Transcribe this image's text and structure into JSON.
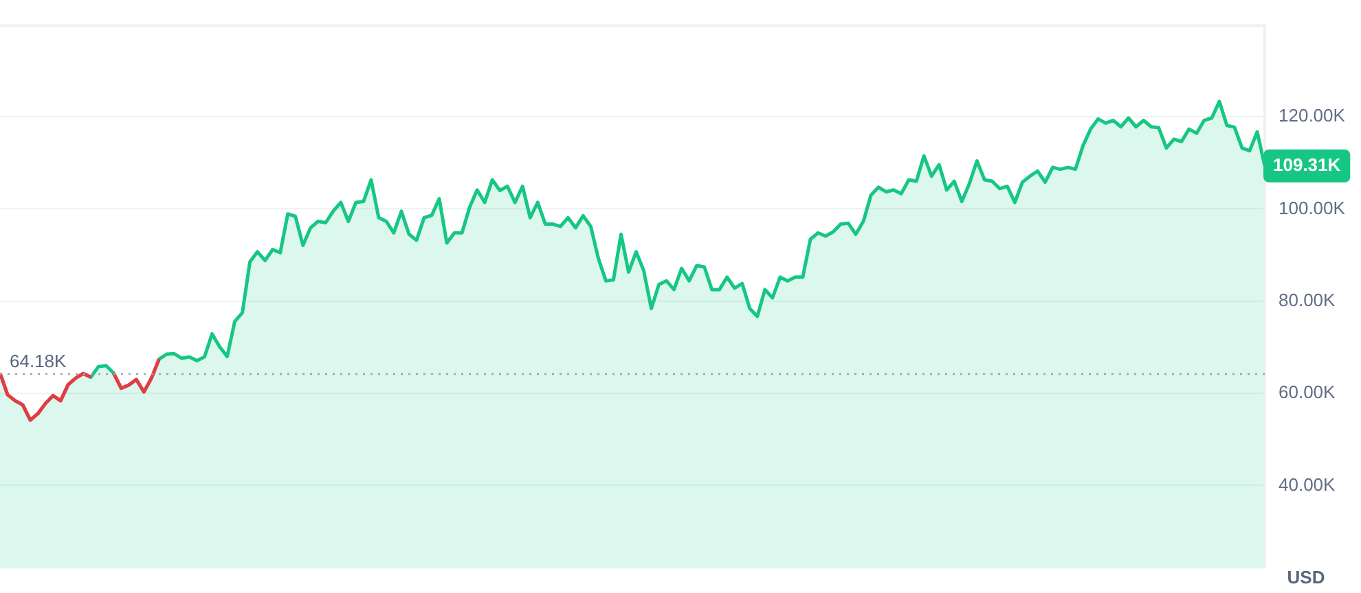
{
  "chart_data": {
    "type": "area",
    "ylabel": "USD",
    "categories": [
      null,
      null,
      null,
      null,
      null,
      null,
      null,
      null,
      null,
      null,
      null,
      null,
      null,
      null,
      null,
      null,
      null,
      null,
      null,
      null,
      null,
      null,
      null,
      null,
      null,
      null,
      null,
      null,
      null,
      null,
      null,
      null,
      null,
      null,
      null,
      null,
      null,
      null,
      null,
      null,
      null,
      null,
      null,
      null,
      null,
      null,
      null,
      null,
      null,
      null,
      null,
      null,
      null,
      null,
      null,
      null,
      null,
      null,
      null,
      null,
      null,
      null,
      null,
      null,
      null,
      null,
      null,
      null,
      null,
      null,
      null,
      null,
      null,
      null,
      null,
      null,
      null,
      null,
      null,
      null,
      null,
      null,
      null,
      null,
      null,
      null,
      null,
      null,
      null,
      null,
      null,
      null,
      null,
      null,
      null,
      null,
      null,
      null,
      null,
      null,
      null,
      null,
      null,
      null,
      null,
      null,
      null,
      null,
      null,
      null,
      null,
      null,
      null,
      null,
      null,
      null,
      null,
      null,
      null,
      null,
      null,
      null,
      null,
      null,
      null,
      null,
      null,
      null,
      null,
      null,
      null,
      null,
      null,
      null,
      null,
      null,
      null,
      null,
      null,
      null,
      null,
      null,
      null,
      null,
      null,
      null,
      null,
      null,
      null,
      null,
      null,
      null,
      null,
      null,
      null,
      null,
      null,
      null,
      null,
      null,
      null,
      null,
      null,
      null,
      null,
      null,
      null,
      null
    ],
    "series": [
      {
        "color": "#16c784",
        "values": [
          64.4,
          59.7,
          58.4,
          57.5,
          54.2,
          55.6,
          57.8,
          59.5,
          58.4,
          61.9,
          63.3,
          64.3,
          63.5,
          65.8,
          66.0,
          64.4,
          61.1,
          61.8,
          63.0,
          60.3,
          63.3,
          67.4,
          68.5,
          68.6,
          67.6,
          67.9,
          67.1,
          67.9,
          72.9,
          70.1,
          68.0,
          75.6,
          77.5,
          88.5,
          90.7,
          88.8,
          91.2,
          90.5,
          98.9,
          98.4,
          92.1,
          95.9,
          97.3,
          97.0,
          99.5,
          101.4,
          97.3,
          101.4,
          101.6,
          106.3,
          98.1,
          97.3,
          94.8,
          99.5,
          94.5,
          93.2,
          98.1,
          98.6,
          102.2,
          92.6,
          94.8,
          94.8,
          100.3,
          104.1,
          101.4,
          106.3,
          104.0,
          104.9,
          101.4,
          104.9,
          98.1,
          101.4,
          96.7,
          96.7,
          96.2,
          98.1,
          95.9,
          98.5,
          96.2,
          89.3,
          84.4,
          84.6,
          94.5,
          86.3,
          90.7,
          86.6,
          78.4,
          83.6,
          84.4,
          82.5,
          87.1,
          84.4,
          87.7,
          87.4,
          82.5,
          82.5,
          85.2,
          82.8,
          83.8,
          78.4,
          76.7,
          82.5,
          80.7,
          85.2,
          84.4,
          85.2,
          85.2,
          93.4,
          94.8,
          94.1,
          95.0,
          96.7,
          96.9,
          94.5,
          97.3,
          103.0,
          104.7,
          103.7,
          104.1,
          103.3,
          106.3,
          106.0,
          111.5,
          107.1,
          109.6,
          104.1,
          106.0,
          101.6,
          105.5,
          110.4,
          106.3,
          106.0,
          104.4,
          104.9,
          101.4,
          105.8,
          107.1,
          108.2,
          105.8,
          109.0,
          108.6,
          109.0,
          108.6,
          113.7,
          117.3,
          119.5,
          118.6,
          119.2,
          117.8,
          119.7,
          117.8,
          119.2,
          117.8,
          117.6,
          113.2,
          115.1,
          114.6,
          117.3,
          116.4,
          119.2,
          119.7,
          123.3,
          118.1,
          117.7,
          113.2,
          112.6,
          116.7,
          109.31
        ]
      },
      {
        "type": "line",
        "color": "#ea3943",
        "values": [
          64.4,
          59.7,
          58.4,
          57.5,
          54.2,
          55.6,
          57.8,
          59.5,
          58.4,
          61.9,
          63.3,
          64.3,
          63.5,
          null,
          null,
          64.4,
          61.1,
          61.8,
          63.0,
          60.3,
          63.3,
          67.4,
          null,
          null,
          null,
          null,
          null,
          null,
          null,
          null,
          null,
          null,
          null,
          null,
          null,
          null,
          null,
          null,
          null,
          null,
          null,
          null,
          null,
          null,
          null,
          null,
          null,
          null,
          null,
          null,
          null,
          null,
          null,
          null,
          null,
          null,
          null,
          null,
          null,
          null,
          null,
          null,
          null,
          null,
          null,
          null,
          null,
          null,
          null,
          null,
          null,
          null,
          null,
          null,
          null,
          null,
          null,
          null,
          null,
          null,
          null,
          null,
          null,
          null,
          null,
          null,
          null,
          null,
          null,
          null,
          null,
          null,
          null,
          null,
          null,
          null,
          null,
          null,
          null,
          null,
          null,
          null,
          null,
          null,
          null,
          null,
          null,
          null,
          null,
          null,
          null,
          null,
          null,
          null,
          null,
          null,
          null,
          null,
          null,
          null,
          null,
          null,
          null,
          null,
          null,
          null,
          null,
          null,
          null,
          null,
          null,
          null,
          null,
          null,
          null,
          null,
          null,
          null,
          null,
          null,
          null,
          null,
          null,
          null,
          null,
          null,
          null,
          null,
          null,
          null,
          null,
          null,
          null,
          null,
          null,
          null,
          null,
          null,
          null,
          null,
          null,
          null,
          null,
          null,
          null,
          null,
          null,
          null
        ]
      }
    ],
    "ylim": [
      22,
      140
    ],
    "yticks": [
      {
        "value": 40,
        "label": "40.00K"
      },
      {
        "value": 60,
        "label": "60.00K"
      },
      {
        "value": 80,
        "label": "80.00K"
      },
      {
        "value": 100,
        "label": "100.00K"
      },
      {
        "value": 120,
        "label": "120.00K"
      }
    ],
    "grid": "y",
    "legend": false,
    "tick_labels": "y",
    "marker": "none",
    "line_style": "solid",
    "ref_lines": [
      {
        "axis": "y",
        "value": 64.18,
        "label": "64.18K",
        "color": "#9aa3b2",
        "line_style": "dotted"
      }
    ],
    "annotations": [
      "109.31K"
    ]
  }
}
